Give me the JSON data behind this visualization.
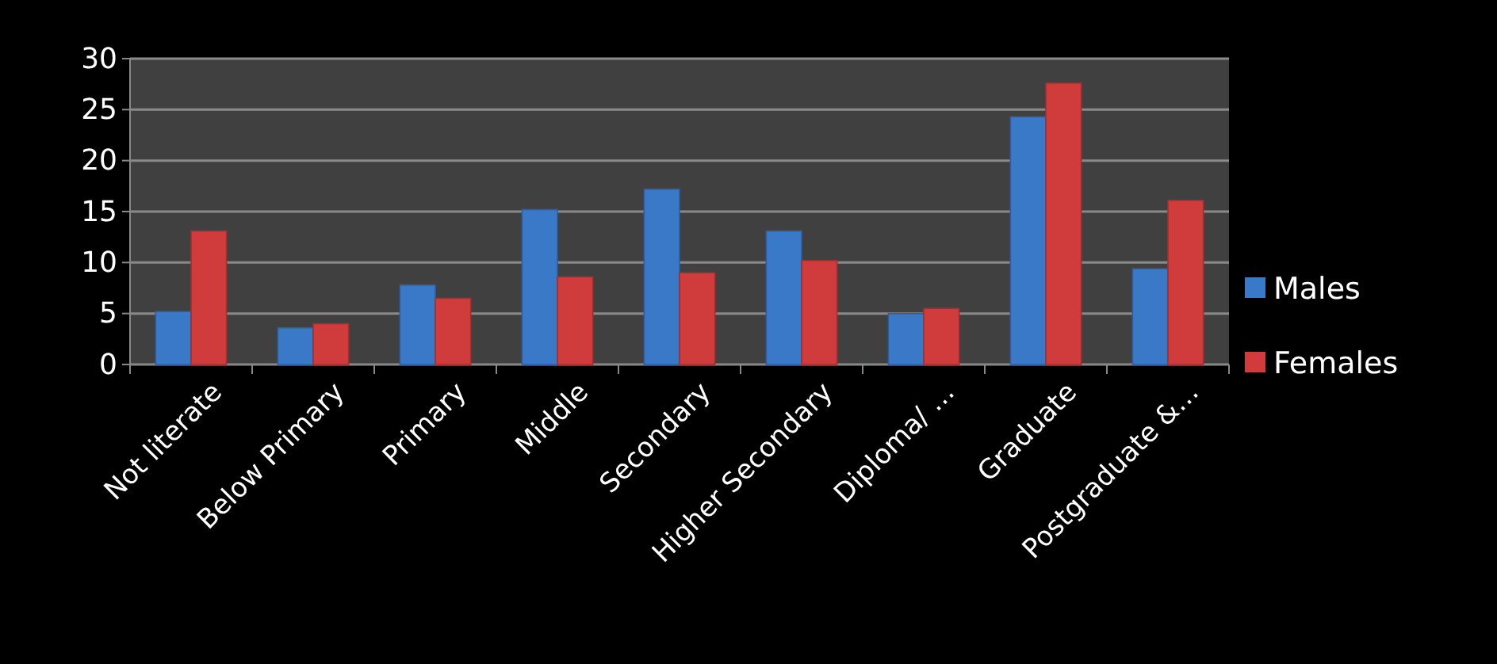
{
  "chart_data": {
    "type": "bar",
    "categories": [
      "Not literate",
      "Below Primary",
      "Primary",
      "Middle",
      "Secondary",
      "Higher Secondary",
      "Diploma/ …",
      "Graduate",
      "Postgraduate &…"
    ],
    "series": [
      {
        "name": "Males",
        "color": "#3a78c8",
        "values": [
          5.2,
          3.6,
          7.8,
          15.2,
          17.2,
          13.1,
          5.0,
          24.3,
          9.4
        ]
      },
      {
        "name": "Females",
        "color": "#d03c3c",
        "values": [
          13.1,
          4.0,
          6.5,
          8.6,
          9.0,
          10.2,
          5.5,
          27.6,
          16.1
        ]
      }
    ],
    "ylim": [
      0,
      30
    ],
    "yticks": [
      0,
      5,
      10,
      15,
      20,
      25,
      30
    ],
    "grid": "y",
    "legend": "right"
  }
}
